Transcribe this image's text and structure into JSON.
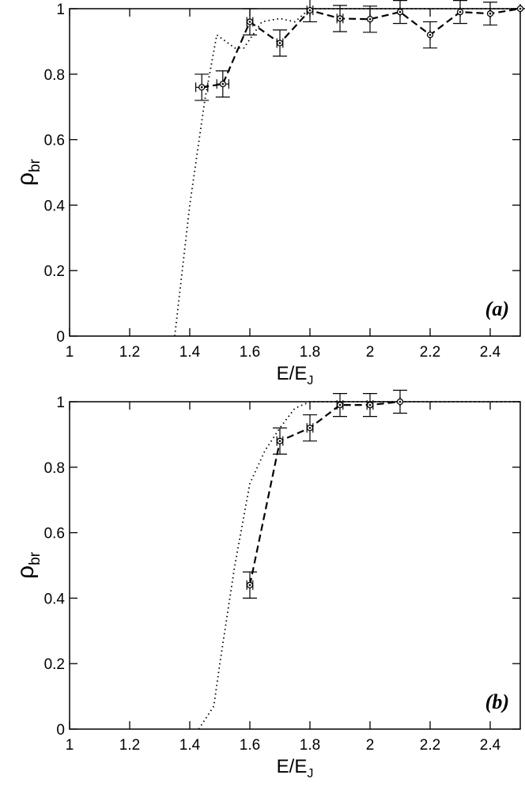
{
  "chart_data": [
    {
      "type": "line",
      "annotation": "(a)",
      "xlabel": "E/E",
      "xlabel_sub": "J",
      "ylabel": "ρ",
      "ylabel_sub": "br",
      "xlim": [
        1,
        2.5
      ],
      "xticks": [
        1,
        1.2,
        1.4,
        1.6,
        1.8,
        2,
        2.2,
        2.4
      ],
      "ylim": [
        0,
        1
      ],
      "yticks": [
        0,
        0.2,
        0.4,
        0.6,
        0.8,
        1
      ],
      "series": [
        {
          "style": "dotted",
          "color": "#000000",
          "x": [
            1.35,
            1.4,
            1.45,
            1.49,
            1.55,
            1.58,
            1.64,
            1.7,
            1.75,
            1.8,
            2.5
          ],
          "values": [
            0,
            0.4,
            0.72,
            0.92,
            0.88,
            0.88,
            0.96,
            0.97,
            0.96,
            1,
            1
          ]
        },
        {
          "style": "dashed",
          "color": "#000000",
          "markers": true,
          "x": [
            1.44,
            1.51,
            1.6,
            1.7,
            1.8,
            1.9,
            2.0,
            2.1,
            2.2,
            2.3,
            2.4,
            2.5
          ],
          "values": [
            0.76,
            0.77,
            0.96,
            0.895,
            0.995,
            0.97,
            0.968,
            0.99,
            0.92,
            0.99,
            0.985,
            1.0
          ],
          "errors": [
            0.04,
            0.04,
            0.04,
            0.04,
            0.035,
            0.04,
            0.04,
            0.035,
            0.04,
            0.035,
            0.035,
            0
          ],
          "x_errors": [
            0.02,
            0.02,
            0.01,
            0.01,
            0.01,
            0.01,
            0,
            0,
            0,
            0,
            0,
            0
          ]
        }
      ]
    },
    {
      "type": "line",
      "annotation": "(b)",
      "xlabel": "E/E",
      "xlabel_sub": "J",
      "ylabel": "ρ",
      "ylabel_sub": "br",
      "xlim": [
        1,
        2.5
      ],
      "xticks": [
        1,
        1.2,
        1.4,
        1.6,
        1.8,
        2,
        2.2,
        2.4
      ],
      "ylim": [
        0,
        1
      ],
      "yticks": [
        0,
        0.2,
        0.4,
        0.6,
        0.8,
        1
      ],
      "series": [
        {
          "style": "dotted",
          "color": "#000000",
          "x": [
            1.43,
            1.48,
            1.5,
            1.55,
            1.6,
            1.65,
            1.7,
            1.75,
            1.8,
            2.5
          ],
          "values": [
            0,
            0.07,
            0.2,
            0.5,
            0.75,
            0.85,
            0.92,
            0.98,
            1,
            1
          ]
        },
        {
          "style": "dashed",
          "color": "#000000",
          "markers": true,
          "x": [
            1.6,
            1.7,
            1.8,
            1.9,
            2.0,
            2.1
          ],
          "values": [
            0.44,
            0.88,
            0.92,
            0.99,
            0.99,
            1.0
          ],
          "errors": [
            0.04,
            0.04,
            0.04,
            0.035,
            0.035,
            0.035
          ],
          "x_errors": [
            0.01,
            0.01,
            0.01,
            0.01,
            0.01,
            0
          ]
        }
      ]
    }
  ]
}
